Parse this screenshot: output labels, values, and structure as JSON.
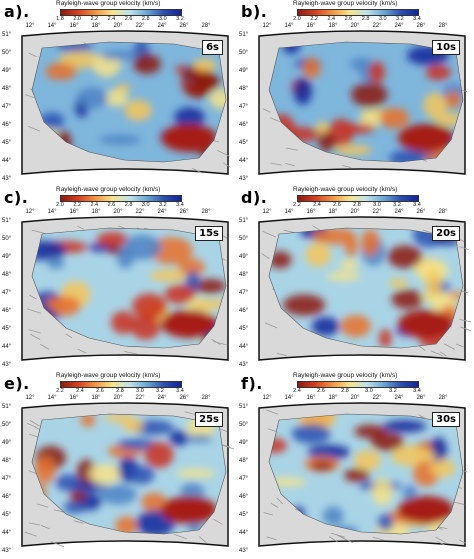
{
  "colorbar_title": "Rayleigh-wave group velocity (km/s)",
  "panels": [
    {
      "label": "a).",
      "period": "6s",
      "ticks": [
        "1.8",
        "2.0",
        "2.2",
        "2.4",
        "2.6",
        "2.8",
        "3.0",
        "3.2"
      ],
      "min": 1.8,
      "max": 3.2
    },
    {
      "label": "b).",
      "period": "10s",
      "ticks": [
        "2.0",
        "2.2",
        "2.4",
        "2.6",
        "2.8",
        "3.0",
        "3.2",
        "3.4"
      ],
      "min": 2.0,
      "max": 3.4
    },
    {
      "label": "c).",
      "period": "15s",
      "ticks": [
        "2.0",
        "2.2",
        "2.4",
        "2.6",
        "2.8",
        "3.0",
        "3.2",
        "3.4"
      ],
      "min": 2.0,
      "max": 3.4
    },
    {
      "label": "d).",
      "period": "20s",
      "ticks": [
        "2.2",
        "2.4",
        "2.6",
        "2.8",
        "3.0",
        "3.2",
        "3.4"
      ],
      "min": 2.2,
      "max": 3.4
    },
    {
      "label": "e).",
      "period": "25s",
      "ticks": [
        "2.2",
        "2.4",
        "2.6",
        "2.8",
        "3.0",
        "3.2",
        "3.4"
      ],
      "min": 2.2,
      "max": 3.4
    },
    {
      "label": "f).",
      "period": "30s",
      "ticks": [
        "2.4",
        "2.6",
        "2.8",
        "3.0",
        "3.2",
        "3.4"
      ],
      "min": 2.4,
      "max": 3.4
    }
  ],
  "lon_labels": [
    "12°",
    "14°",
    "16°",
    "18°",
    "20°",
    "22°",
    "24°",
    "26°",
    "28°"
  ],
  "lat_labels": [
    "51°",
    "50°",
    "49°",
    "48°",
    "47°",
    "46°",
    "45°",
    "44°",
    "43°"
  ],
  "colors": {
    "low": "#9b1c0f",
    "mid": "#f4eda0",
    "high": "#13239a",
    "land": "#d9d9d9"
  }
}
